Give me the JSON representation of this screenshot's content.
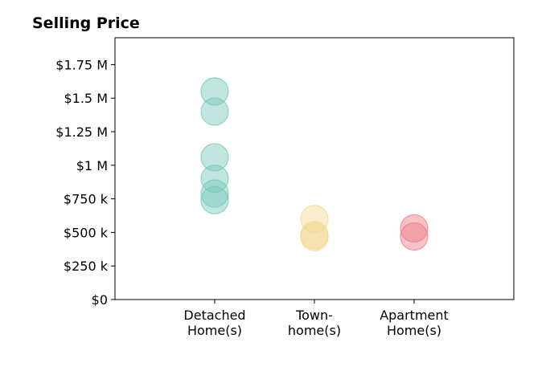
{
  "chart_data": {
    "type": "scatter",
    "title": "Selling Price",
    "xlabel": "",
    "ylabel": "",
    "categories": [
      [
        "Detached",
        "Home(s)"
      ],
      [
        "Town-",
        "home(s)"
      ],
      [
        "Apartment",
        "Home(s)"
      ]
    ],
    "ylim": [
      0,
      1950000
    ],
    "yticks": [
      0,
      250000,
      500000,
      750000,
      1000000,
      1250000,
      1500000,
      1750000
    ],
    "ytick_labels": [
      "$0",
      "$250 k",
      "$500 k",
      "$750 k",
      "$1 M",
      "$1.25 M",
      "$1.5 M",
      "$1.75 M"
    ],
    "grid": false,
    "legend": "none",
    "series": [
      {
        "category_index": 0,
        "color": "#76c7b7",
        "values": [
          1550000,
          1400000,
          1060000,
          900000,
          790000,
          740000
        ]
      },
      {
        "category_index": 1,
        "color": "#f2d891",
        "values": [
          600000,
          480000,
          465000
        ]
      },
      {
        "category_index": 2,
        "color": "#ee7a88",
        "values": [
          530000,
          470000
        ]
      }
    ]
  }
}
